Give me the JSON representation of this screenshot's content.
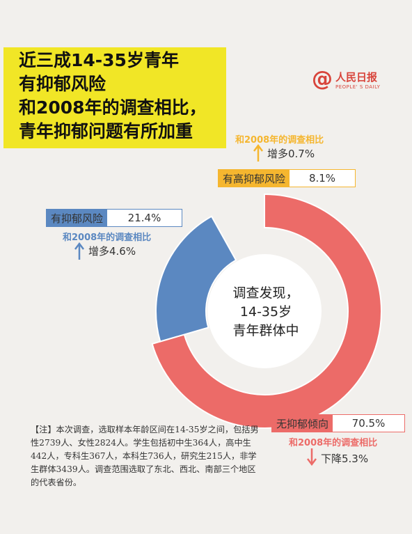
{
  "title": {
    "lines": [
      "近三成14-35岁青年",
      "有抑郁风险",
      "和2008年的调查相比，",
      "青年抑郁问题有所加重"
    ]
  },
  "logo": {
    "name": "人民日报",
    "sub": "PEOPLE' S DAILY",
    "at": "@"
  },
  "center_text": {
    "lines": [
      "调查发现，",
      "14-35岁",
      "青年群体中"
    ]
  },
  "chart_data": {
    "type": "pie",
    "style": "donut",
    "categories": [
      "无抑郁倾向",
      "有抑郁风险",
      "有高抑郁风险"
    ],
    "values": [
      70.5,
      21.4,
      8.1
    ],
    "value_labels": [
      "70.5%",
      "21.4%",
      "8.1%"
    ],
    "colors": [
      "#ec6b68",
      "#5b88c1",
      "#f5b62f"
    ],
    "comparisons": [
      {
        "label": "和2008年的调查相比",
        "direction": "down",
        "change": "下降5.3%"
      },
      {
        "label": "和2008年的调查相比",
        "direction": "up",
        "change": "增多4.6%"
      },
      {
        "label": "和2008年的调查相比",
        "direction": "up",
        "change": "增多0.7%"
      }
    ]
  },
  "note": "【注】本次调查，选取样本年龄区间在14-35岁之间，包括男性2739人、女性2824人。学生包括初中生364人，高中生442人，专科生367人，本科生736人，研究生215人，非学生群体3439人。调查范围选取了东北、西北、南部三个地区的代表省份。"
}
